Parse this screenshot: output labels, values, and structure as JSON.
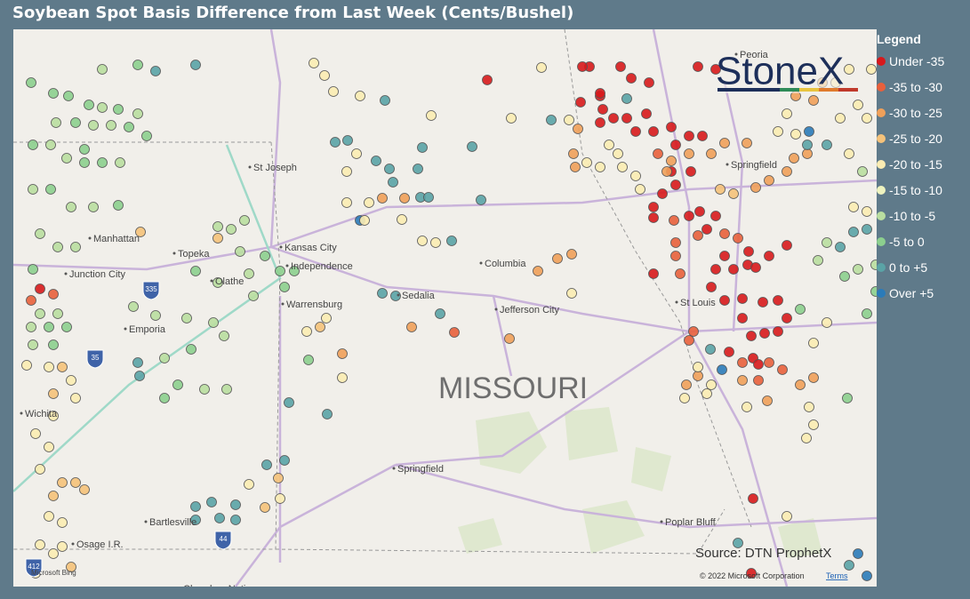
{
  "header": {
    "title": "Soybean Spot Basis Difference from Last Week (Cents/Bushel)"
  },
  "legend": {
    "title": "Legend",
    "items": [
      {
        "label": "Under -35",
        "color": "#d7191c"
      },
      {
        "label": "-35 to -30",
        "color": "#e8603c"
      },
      {
        "label": "-30 to -25",
        "color": "#f0a05a"
      },
      {
        "label": "-25 to -20",
        "color": "#f5c27a"
      },
      {
        "label": "-20 to -15",
        "color": "#fbecb2"
      },
      {
        "label": "-15 to -10",
        "color": "#eef3bf"
      },
      {
        "label": "-10 to -5",
        "color": "#b9dea0"
      },
      {
        "label": "-5 to 0",
        "color": "#8ccf8e"
      },
      {
        "label": "0 to +5",
        "color": "#5aa3a6"
      },
      {
        "label": "Over +5",
        "color": "#2b7bb9"
      }
    ]
  },
  "map": {
    "state_label": "MISSOURI",
    "places": [
      "St Joseph",
      "Manhattan",
      "Junction City",
      "Topeka",
      "Olathe",
      "Kansas City",
      "Independence",
      "Emporia",
      "Warrensburg",
      "Sedalia",
      "Columbia",
      "Jefferson City",
      "St Louis",
      "Springfield",
      "Springfield",
      "Peoria",
      "Wichita",
      "Bartlesville",
      "Osage I.R.",
      "Cherokee Nation",
      "Poplar Bluff"
    ],
    "shields": [
      "335",
      "35",
      "44",
      "412"
    ],
    "logo": "StoneX",
    "source": "Source: DTN ProphetX",
    "copyright": "© 2022 Microsoft Corporation",
    "terms": "Terms",
    "bing": "Microsoft Bing"
  }
}
